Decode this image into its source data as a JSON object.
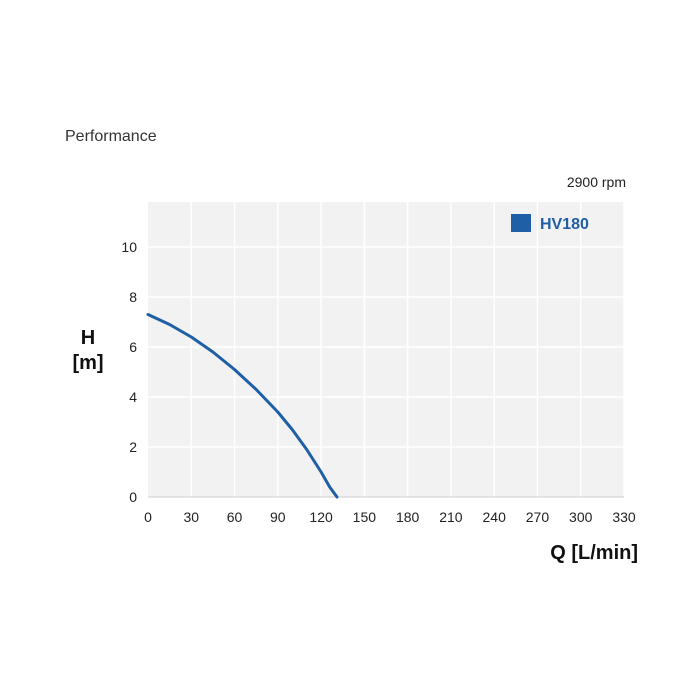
{
  "header": {
    "title": "Performance",
    "rpm": "2900 rpm"
  },
  "chart_data": {
    "type": "line",
    "title": "Performance",
    "subtitle": "2900 rpm",
    "xlabel": "Q [L/min]",
    "ylabel_line1": "H",
    "ylabel_line2": "[m]",
    "xlim": [
      0,
      330
    ],
    "ylim": [
      0,
      12
    ],
    "x_ticks": [
      0,
      30,
      60,
      90,
      120,
      150,
      180,
      210,
      240,
      270,
      300,
      330
    ],
    "y_ticks": [
      0,
      2,
      4,
      6,
      8,
      10
    ],
    "grid": true,
    "legend_position": "top-right",
    "series": [
      {
        "name": "HV180",
        "color": "#1f5fa6",
        "x": [
          0,
          15,
          30,
          45,
          60,
          75,
          90,
          100,
          110,
          120,
          126,
          131
        ],
        "y": [
          7.3,
          6.9,
          6.4,
          5.8,
          5.1,
          4.3,
          3.4,
          2.7,
          1.9,
          1.0,
          0.4,
          0.0
        ]
      }
    ]
  }
}
